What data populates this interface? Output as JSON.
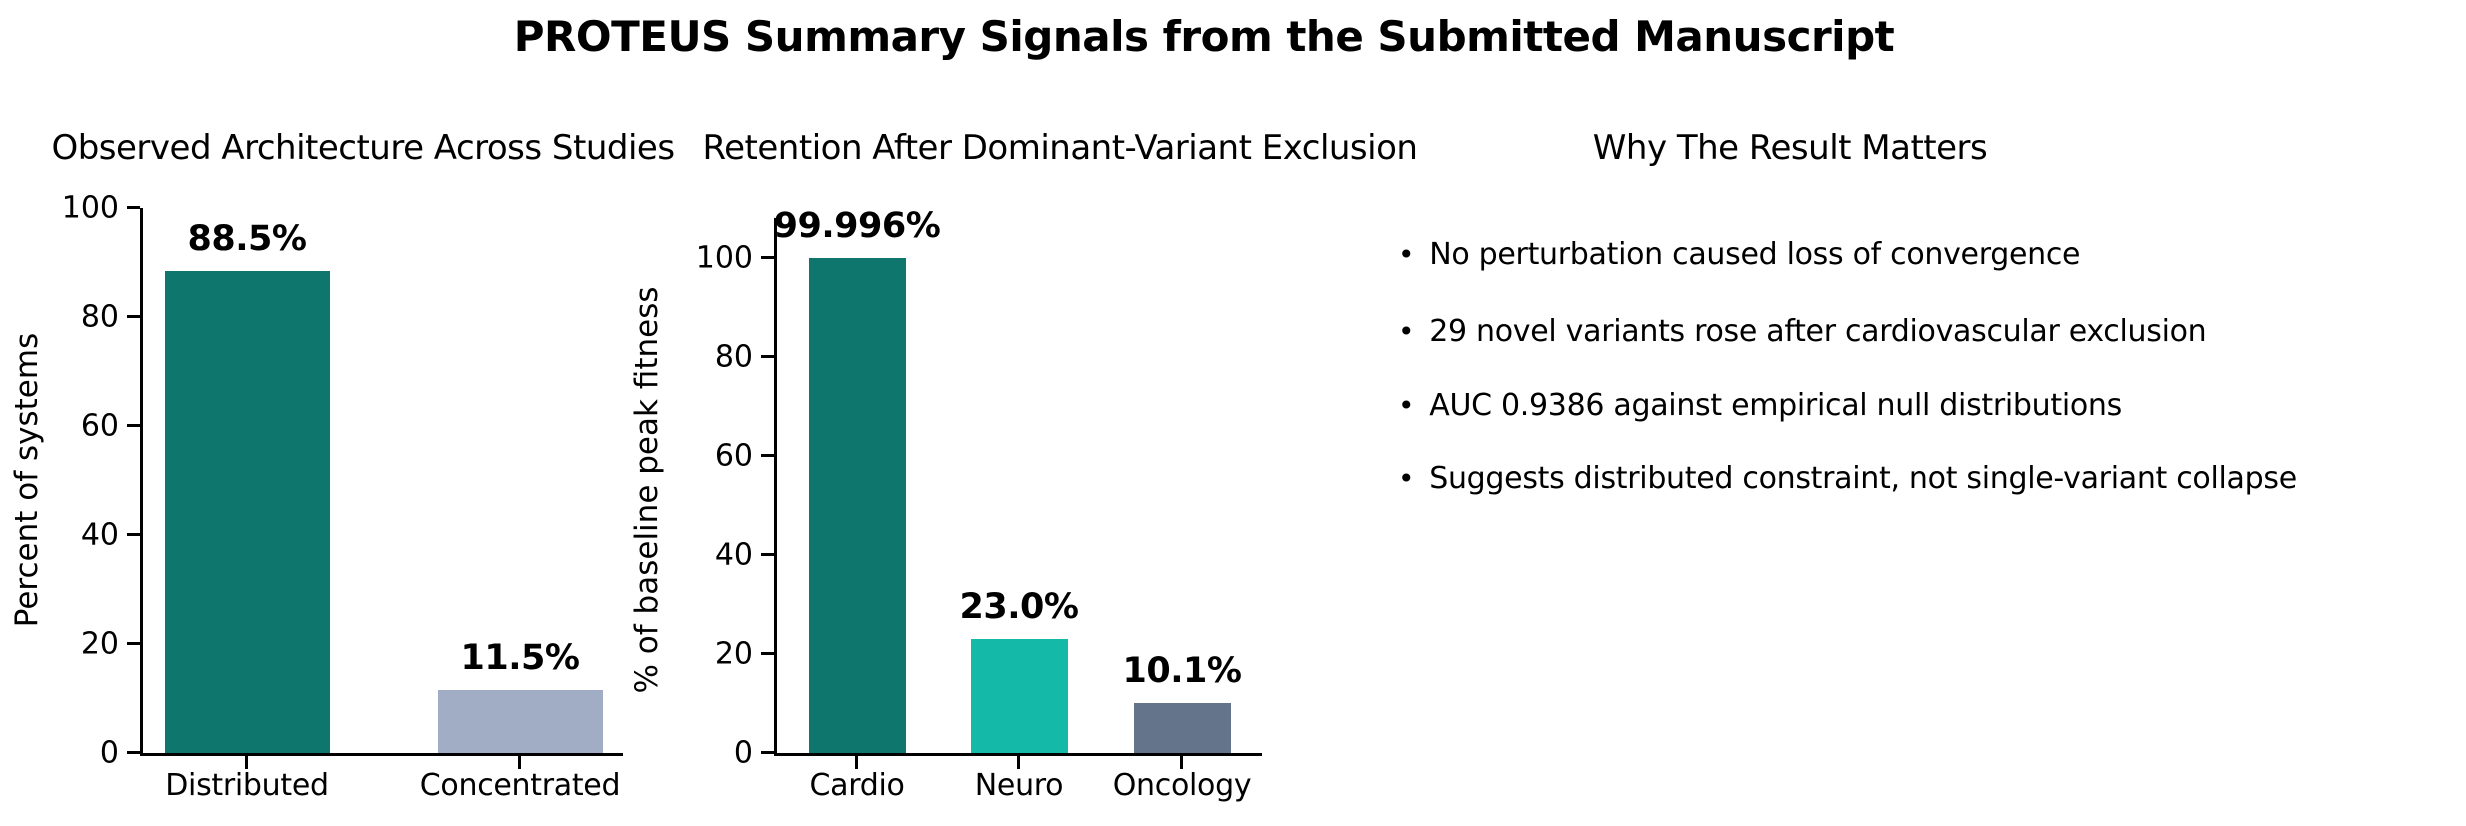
{
  "figure": {
    "title": "PROTEUS Summary Signals from the Submitted Manuscript"
  },
  "chart_data": [
    {
      "type": "bar",
      "title": "Observed Architecture Across Studies",
      "xlabel": "",
      "ylabel": "Percent of systems",
      "categories": [
        "Distributed",
        "Concentrated"
      ],
      "values": [
        88.5,
        11.5
      ],
      "value_labels": [
        "88.5%",
        "11.5%"
      ],
      "bar_colors": [
        "#0F766E",
        "#A1ADC4"
      ],
      "ylim": [
        0,
        100
      ],
      "yticks": [
        0,
        20,
        40,
        60,
        80,
        100
      ],
      "grid": false,
      "legend": null
    },
    {
      "type": "bar",
      "title": "Retention After Dominant-Variant Exclusion",
      "xlabel": "",
      "ylabel": "% of baseline peak fitness",
      "categories": [
        "Cardio",
        "Neuro",
        "Oncology"
      ],
      "values": [
        99.996,
        23.0,
        10.1
      ],
      "value_labels": [
        "99.996%",
        "23.0%",
        "10.1%"
      ],
      "bar_colors": [
        "#0F766E",
        "#15B9A8",
        "#64748B"
      ],
      "ylim": [
        0,
        108
      ],
      "yticks": [
        0,
        20,
        40,
        60,
        80,
        100
      ],
      "grid": false,
      "legend": null
    }
  ],
  "why_panel": {
    "title": "Why The Result Matters",
    "bullet_char": "•",
    "bullets": [
      "No perturbation caused loss of convergence",
      "29 novel variants rose after cardiovascular exclusion",
      "AUC 0.9386 against empirical null distributions",
      "Suggests distributed constraint, not single-variant collapse"
    ]
  },
  "colors": {
    "background": "#ffffff",
    "text": "#000000",
    "axis": "#000000"
  }
}
